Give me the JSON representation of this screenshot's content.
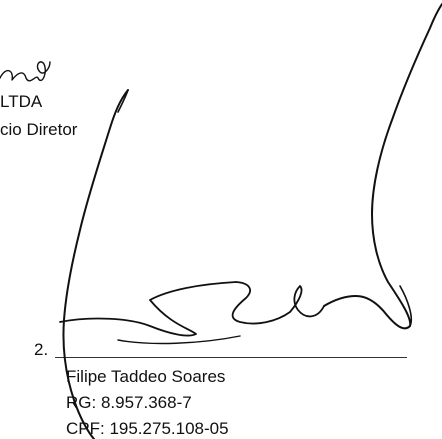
{
  "signer_1": {
    "company_fragment": "LTDA",
    "role_fragment": "cio Diretor"
  },
  "signer_2": {
    "item_number": "2.",
    "name": "Filipe Taddeo Soares",
    "rg": "RG: 8.957.368-7",
    "cpf": "CPF: 195.275.108-05"
  }
}
